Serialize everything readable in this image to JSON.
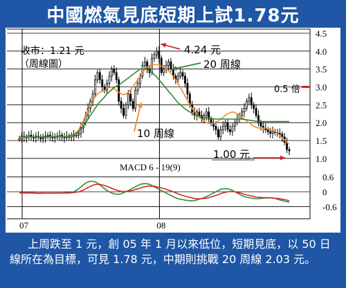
{
  "title": "中國燃氣見底短期上試1.78元",
  "caption": "上周跌至 1 元，創 05 年 1 月以來低位，短期見底，以 50 日線所在為目標，可見 1.78 元，中期則挑戰 20 周線 2.03 元。",
  "colors": {
    "frame": "#1f56a5",
    "price": "#000000",
    "ma10": "#ef8a2a",
    "ma20": "#2e8b2e",
    "arrow": "#d9212a",
    "macd_line": "#2e8b2e",
    "signal_line": "#d9212a"
  },
  "chart_data": [
    {
      "type": "candlestick",
      "title": "",
      "ylim": [
        0.9,
        4.5
      ],
      "y_ticks": [
        "4.5",
        "4.0",
        "3.5",
        "3.0",
        "2.5",
        "2.0",
        "1.5",
        "1.0"
      ],
      "x_ticks": [
        "07",
        "08"
      ],
      "annotations": {
        "close_label": "收市：1.21 元",
        "period_label": "（周線圖）",
        "high_label": "4.24 元",
        "ma20_label": "20 周線",
        "ma10_label": "10 周線",
        "ratio_label": "0.5 倍",
        "low_label": "1.00 元"
      },
      "high_point": 4.24,
      "low_point": 1.0,
      "ratio_level": 3.0,
      "closes": [
        1.55,
        1.62,
        1.58,
        1.6,
        1.65,
        1.6,
        1.58,
        1.62,
        1.6,
        1.55,
        1.58,
        1.62,
        1.65,
        1.6,
        1.58,
        1.62,
        1.6,
        1.65,
        1.6,
        1.58,
        1.62,
        1.6,
        1.62,
        1.65,
        1.65,
        1.7,
        1.85,
        2.0,
        2.2,
        2.4,
        2.6,
        2.8,
        3.2,
        3.4,
        3.2,
        3.0,
        2.9,
        3.1,
        3.3,
        3.5,
        3.4,
        3.2,
        2.6,
        2.4,
        2.2,
        2.5,
        2.8,
        2.6,
        2.4,
        2.9,
        3.1,
        3.3,
        3.6,
        3.7,
        3.5,
        3.4,
        3.8,
        3.9,
        4.0,
        3.8,
        3.4,
        3.5,
        3.6,
        3.7,
        3.5,
        3.3,
        3.2,
        3.3,
        3.4,
        3.3,
        3.1,
        2.8,
        2.5,
        2.3,
        2.2,
        2.3,
        2.2,
        2.1,
        2.2,
        2.3,
        2.1,
        2.0,
        1.9,
        1.8,
        1.6,
        1.8,
        1.9,
        2.0,
        1.8,
        1.75,
        1.9,
        2.0,
        2.1,
        2.2,
        2.3,
        2.4,
        2.6,
        2.7,
        2.5,
        2.4,
        2.2,
        2.0,
        1.9,
        1.85,
        1.8,
        1.75,
        1.7,
        1.75,
        1.72,
        1.7,
        1.68,
        1.6,
        1.45,
        1.25,
        1.21
      ],
      "series": [
        {
          "name": "10 周線",
          "values": [
            1.55,
            1.58,
            1.58,
            1.6,
            1.6,
            1.6,
            1.6,
            1.6,
            1.6,
            1.6,
            1.6,
            1.6,
            1.6,
            1.61,
            1.61,
            1.61,
            1.6,
            1.61,
            1.61,
            1.61,
            1.61,
            1.62,
            1.63,
            1.66,
            1.72,
            1.8,
            1.92,
            2.05,
            2.2,
            2.35,
            2.5,
            2.62,
            2.72,
            2.8,
            2.85,
            2.88,
            2.9,
            2.95,
            2.98,
            3.0,
            2.95,
            2.9,
            2.85,
            2.8,
            2.78,
            2.8,
            2.85,
            2.92,
            3.0,
            3.1,
            3.2,
            3.3,
            3.4,
            3.48,
            3.55,
            3.6,
            3.62,
            3.63,
            3.62,
            3.6,
            3.58,
            3.55,
            3.5,
            3.45,
            3.38,
            3.3,
            3.2,
            3.1,
            2.98,
            2.86,
            2.74,
            2.62,
            2.5,
            2.4,
            2.3,
            2.22,
            2.15,
            2.1,
            2.05,
            2.0,
            1.98,
            1.98,
            1.98,
            2.0,
            2.05,
            2.1,
            2.15,
            2.2,
            2.25,
            2.28,
            2.3,
            2.28,
            2.25,
            2.2,
            2.15,
            2.1,
            2.05,
            2.0,
            1.95,
            1.9,
            1.87,
            1.85,
            1.85,
            1.85,
            1.85,
            1.83,
            1.8,
            1.78,
            1.75,
            1.7,
            1.65,
            1.58,
            1.52,
            1.45,
            1.4
          ]
        },
        {
          "name": "20 周線",
          "values": [
            1.58,
            1.6,
            1.6,
            1.6,
            1.6,
            1.6,
            1.6,
            1.6,
            1.6,
            1.6,
            1.6,
            1.6,
            1.6,
            1.6,
            1.6,
            1.6,
            1.6,
            1.6,
            1.6,
            1.6,
            1.62,
            1.63,
            1.65,
            1.67,
            1.7,
            1.75,
            1.82,
            1.9,
            2.0,
            2.1,
            2.2,
            2.3,
            2.4,
            2.5,
            2.58,
            2.65,
            2.72,
            2.8,
            2.86,
            2.92,
            2.98,
            3.02,
            3.05,
            3.1,
            3.15,
            3.2,
            3.25,
            3.3,
            3.35,
            3.4,
            3.45,
            3.5,
            3.5,
            3.5,
            3.48,
            3.45,
            3.4,
            3.34,
            3.28,
            3.2,
            3.12,
            3.04,
            2.96,
            2.88,
            2.8,
            2.72,
            2.64,
            2.56,
            2.5,
            2.44,
            2.38,
            2.34,
            2.3,
            2.26,
            2.23,
            2.2,
            2.18,
            2.16,
            2.15,
            2.14,
            2.13,
            2.12,
            2.11,
            2.1,
            2.1,
            2.1,
            2.1,
            2.1,
            2.1,
            2.1,
            2.1,
            2.1,
            2.1,
            2.1,
            2.1,
            2.09,
            2.08,
            2.07,
            2.06,
            2.05,
            2.04,
            2.03,
            2.03,
            2.03,
            2.03,
            2.03,
            2.03,
            2.03,
            2.03,
            2.03,
            2.03,
            2.03,
            2.03,
            2.03,
            2.03
          ]
        }
      ]
    },
    {
      "type": "line",
      "title": "MACD 6 - 19(9)",
      "ylim": [
        -0.7,
        0.7
      ],
      "y_ticks": [
        "0.6",
        "0",
        "-0.6"
      ],
      "series": [
        {
          "name": "",
          "values": [
            -0.05,
            -0.05,
            -0.05,
            -0.05,
            -0.05,
            -0.05,
            -0.05,
            -0.06,
            -0.06,
            -0.06,
            -0.06,
            -0.05,
            -0.05,
            -0.05,
            -0.05,
            -0.05,
            -0.05,
            -0.05,
            -0.05,
            -0.04,
            -0.04,
            -0.03,
            -0.02,
            0.0,
            0.05,
            0.12,
            0.2,
            0.28,
            0.35,
            0.4,
            0.42,
            0.42,
            0.4,
            0.35,
            0.28,
            0.2,
            0.12,
            0.05,
            0.0,
            -0.05,
            -0.08,
            -0.1,
            -0.1,
            -0.08,
            -0.04,
            0.0,
            0.05,
            0.1,
            0.15,
            0.2,
            0.25,
            0.3,
            0.32,
            0.33,
            0.32,
            0.3,
            0.25,
            0.2,
            0.15,
            0.1,
            0.05,
            0.0,
            -0.05,
            -0.1,
            -0.15,
            -0.2,
            -0.25,
            -0.28,
            -0.3,
            -0.32,
            -0.34,
            -0.35,
            -0.36,
            -0.36,
            -0.35,
            -0.33,
            -0.3,
            -0.27,
            -0.24,
            -0.2,
            -0.15,
            -0.1,
            -0.05,
            0.0,
            0.05,
            0.1,
            0.12,
            0.13,
            0.12,
            0.1,
            0.05,
            0.0,
            -0.05,
            -0.1,
            -0.15,
            -0.2,
            -0.22,
            -0.24,
            -0.26,
            -0.27,
            -0.28,
            -0.28,
            -0.27,
            -0.26,
            -0.25,
            -0.25,
            -0.24,
            -0.25,
            -0.27,
            -0.3,
            -0.33,
            -0.35,
            -0.38,
            -0.4,
            -0.42
          ]
        },
        {
          "name": "",
          "values": [
            -0.04,
            -0.04,
            -0.04,
            -0.04,
            -0.04,
            -0.04,
            -0.04,
            -0.05,
            -0.05,
            -0.05,
            -0.05,
            -0.05,
            -0.05,
            -0.05,
            -0.05,
            -0.05,
            -0.05,
            -0.05,
            -0.05,
            -0.05,
            -0.05,
            -0.05,
            -0.04,
            -0.03,
            -0.02,
            0.0,
            0.03,
            0.07,
            0.12,
            0.17,
            0.22,
            0.26,
            0.29,
            0.3,
            0.3,
            0.28,
            0.25,
            0.22,
            0.18,
            0.14,
            0.1,
            0.07,
            0.04,
            0.02,
            0.01,
            0.01,
            0.02,
            0.04,
            0.06,
            0.09,
            0.12,
            0.15,
            0.18,
            0.2,
            0.22,
            0.23,
            0.23,
            0.22,
            0.2,
            0.18,
            0.16,
            0.13,
            0.1,
            0.07,
            0.03,
            0.0,
            -0.04,
            -0.08,
            -0.12,
            -0.15,
            -0.18,
            -0.21,
            -0.23,
            -0.25,
            -0.27,
            -0.28,
            -0.28,
            -0.28,
            -0.27,
            -0.26,
            -0.24,
            -0.21,
            -0.18,
            -0.15,
            -0.12,
            -0.08,
            -0.05,
            -0.02,
            0.0,
            0.01,
            0.01,
            0.0,
            -0.02,
            -0.04,
            -0.07,
            -0.1,
            -0.13,
            -0.15,
            -0.17,
            -0.19,
            -0.21,
            -0.22,
            -0.23,
            -0.24,
            -0.24,
            -0.24,
            -0.24,
            -0.25,
            -0.26,
            -0.27,
            -0.28,
            -0.3,
            -0.32,
            -0.34,
            -0.36
          ]
        }
      ]
    }
  ]
}
